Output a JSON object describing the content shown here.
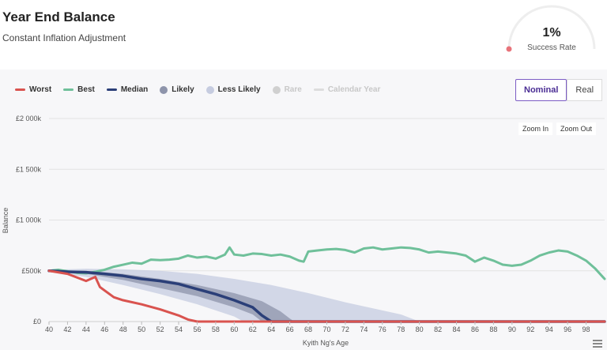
{
  "header": {
    "title": "Year End Balance",
    "subtitle": "Constant Inflation Adjustment",
    "gauge_value": "1%",
    "gauge_label": "Success Rate",
    "gauge_fraction": 0.01
  },
  "legend": [
    {
      "label": "Worst",
      "kind": "line",
      "color": "#d9534f",
      "enabled": true
    },
    {
      "label": "Best",
      "kind": "line",
      "color": "#6fc09a",
      "enabled": true
    },
    {
      "label": "Median",
      "kind": "line",
      "color": "#2b3f78",
      "enabled": true
    },
    {
      "label": "Likely",
      "kind": "dot",
      "color": "#8e94ab",
      "enabled": true
    },
    {
      "label": "Less Likely",
      "kind": "dot",
      "color": "#c6cce0",
      "enabled": true
    },
    {
      "label": "Rare",
      "kind": "dot",
      "color": "#d0d0d0",
      "enabled": false
    },
    {
      "label": "Calendar Year",
      "kind": "line",
      "color": "#dddddd",
      "enabled": false
    }
  ],
  "toggle": {
    "nominal": "Nominal",
    "real": "Real",
    "active": "nominal"
  },
  "zoom": {
    "in_label": "Zoom In",
    "out_label": "Zoom Out"
  },
  "chart_data": {
    "type": "area",
    "xlabel": "Kyith Ng's Age",
    "ylabel": "Balance",
    "xlim": [
      40,
      100
    ],
    "ylim": [
      0,
      2000000
    ],
    "x_ticks": [
      40,
      42,
      44,
      46,
      48,
      50,
      52,
      54,
      56,
      58,
      60,
      62,
      64,
      66,
      68,
      70,
      72,
      74,
      76,
      78,
      80,
      82,
      84,
      86,
      88,
      90,
      92,
      94,
      96,
      98
    ],
    "y_ticks": [
      {
        "value": 0,
        "label": "£0"
      },
      {
        "value": 500000,
        "label": "£500k"
      },
      {
        "value": 1000000,
        "label": "£1 000k"
      },
      {
        "value": 1500000,
        "label": "£1 500k"
      },
      {
        "value": 2000000,
        "label": "£2 000k"
      }
    ],
    "grid": true,
    "legend_position": "top-left",
    "series": [
      {
        "name": "Best",
        "color": "#6fc09a",
        "points": [
          [
            40,
            500000
          ],
          [
            41,
            510000
          ],
          [
            42,
            495000
          ],
          [
            43,
            480000
          ],
          [
            44,
            475000
          ],
          [
            45,
            490000
          ],
          [
            46,
            510000
          ],
          [
            47,
            540000
          ],
          [
            48,
            560000
          ],
          [
            49,
            580000
          ],
          [
            50,
            570000
          ],
          [
            51,
            610000
          ],
          [
            52,
            605000
          ],
          [
            53,
            610000
          ],
          [
            54,
            620000
          ],
          [
            55,
            650000
          ],
          [
            56,
            630000
          ],
          [
            57,
            640000
          ],
          [
            58,
            620000
          ],
          [
            59,
            660000
          ],
          [
            59.5,
            730000
          ],
          [
            60,
            660000
          ],
          [
            61,
            650000
          ],
          [
            62,
            670000
          ],
          [
            63,
            665000
          ],
          [
            64,
            650000
          ],
          [
            65,
            660000
          ],
          [
            66,
            640000
          ],
          [
            67,
            600000
          ],
          [
            67.5,
            590000
          ],
          [
            68,
            690000
          ],
          [
            69,
            700000
          ],
          [
            70,
            710000
          ],
          [
            71,
            715000
          ],
          [
            72,
            705000
          ],
          [
            73,
            680000
          ],
          [
            74,
            720000
          ],
          [
            75,
            730000
          ],
          [
            76,
            710000
          ],
          [
            77,
            720000
          ],
          [
            78,
            730000
          ],
          [
            79,
            725000
          ],
          [
            80,
            710000
          ],
          [
            81,
            680000
          ],
          [
            82,
            690000
          ],
          [
            83,
            680000
          ],
          [
            84,
            670000
          ],
          [
            85,
            650000
          ],
          [
            86,
            590000
          ],
          [
            87,
            630000
          ],
          [
            88,
            600000
          ],
          [
            89,
            560000
          ],
          [
            90,
            550000
          ],
          [
            91,
            560000
          ],
          [
            92,
            600000
          ],
          [
            93,
            650000
          ],
          [
            94,
            680000
          ],
          [
            95,
            700000
          ],
          [
            96,
            690000
          ],
          [
            97,
            650000
          ],
          [
            98,
            600000
          ],
          [
            99,
            520000
          ],
          [
            100,
            420000
          ]
        ]
      },
      {
        "name": "Median",
        "color": "#2b3f78",
        "points": [
          [
            40,
            500000
          ],
          [
            42,
            490000
          ],
          [
            44,
            485000
          ],
          [
            46,
            470000
          ],
          [
            48,
            450000
          ],
          [
            50,
            420000
          ],
          [
            52,
            400000
          ],
          [
            54,
            370000
          ],
          [
            56,
            320000
          ],
          [
            58,
            270000
          ],
          [
            60,
            210000
          ],
          [
            62,
            140000
          ],
          [
            63,
            60000
          ],
          [
            64,
            0
          ],
          [
            100,
            0
          ]
        ]
      },
      {
        "name": "Worst",
        "color": "#d9534f",
        "points": [
          [
            40,
            500000
          ],
          [
            42,
            470000
          ],
          [
            44,
            400000
          ],
          [
            45,
            440000
          ],
          [
            45.5,
            340000
          ],
          [
            47,
            240000
          ],
          [
            48,
            210000
          ],
          [
            50,
            170000
          ],
          [
            52,
            120000
          ],
          [
            54,
            60000
          ],
          [
            55,
            20000
          ],
          [
            56,
            0
          ],
          [
            100,
            0
          ]
        ]
      }
    ],
    "bands": [
      {
        "name": "Less Likely",
        "color": "#c6cce0",
        "upper": [
          [
            40,
            510000
          ],
          [
            44,
            520000
          ],
          [
            48,
            515000
          ],
          [
            52,
            500000
          ],
          [
            56,
            470000
          ],
          [
            60,
            420000
          ],
          [
            64,
            360000
          ],
          [
            68,
            280000
          ],
          [
            72,
            190000
          ],
          [
            76,
            110000
          ],
          [
            78,
            70000
          ],
          [
            80,
            0
          ]
        ],
        "lower": [
          [
            40,
            490000
          ],
          [
            44,
            440000
          ],
          [
            48,
            360000
          ],
          [
            52,
            270000
          ],
          [
            56,
            170000
          ],
          [
            58,
            110000
          ],
          [
            60,
            50000
          ],
          [
            61,
            0
          ],
          [
            80,
            0
          ]
        ]
      },
      {
        "name": "Likely",
        "color": "#8e94ab",
        "upper": [
          [
            40,
            505000
          ],
          [
            44,
            500000
          ],
          [
            48,
            470000
          ],
          [
            52,
            420000
          ],
          [
            56,
            360000
          ],
          [
            60,
            280000
          ],
          [
            63,
            200000
          ],
          [
            65,
            100000
          ],
          [
            66,
            30000
          ],
          [
            66.5,
            0
          ]
        ],
        "lower": [
          [
            40,
            495000
          ],
          [
            44,
            470000
          ],
          [
            48,
            410000
          ],
          [
            52,
            330000
          ],
          [
            56,
            250000
          ],
          [
            60,
            140000
          ],
          [
            62,
            70000
          ],
          [
            63,
            0
          ],
          [
            66.5,
            0
          ]
        ]
      }
    ]
  }
}
